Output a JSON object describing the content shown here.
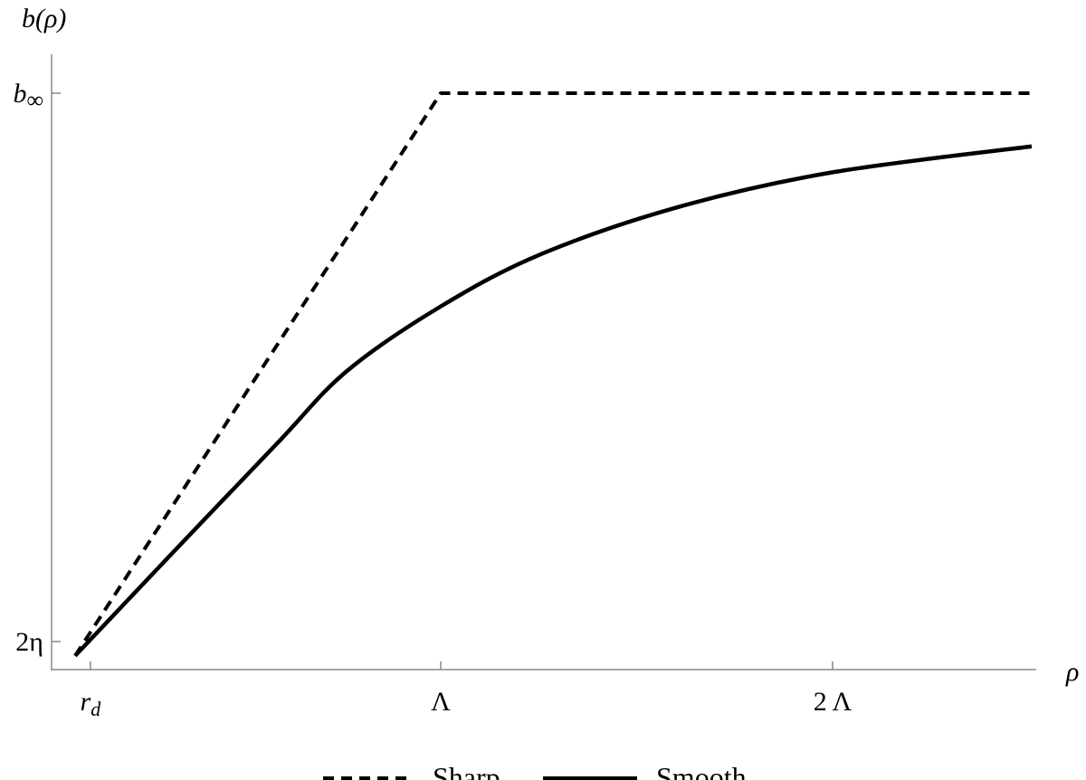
{
  "chart_data": {
    "type": "line",
    "title": "",
    "xlabel": "ρ",
    "ylabel": "b(ρ)",
    "xlim": [
      0,
      2.52
    ],
    "ylim": [
      -0.051,
      1.071
    ],
    "x_unit": "Λ",
    "y_scale_note": "0 = 2η, 1 = b∞",
    "x_ticks": [
      {
        "value": 0.106,
        "label": "r",
        "sub": "d"
      },
      {
        "value": 1,
        "label": "Λ"
      },
      {
        "value": 2,
        "label": "2 Λ"
      }
    ],
    "y_ticks": [
      {
        "value": 0,
        "label": "2η"
      },
      {
        "value": 1,
        "label": "b",
        "sub": "∞"
      }
    ],
    "grid": false,
    "legend_placement": "bottom",
    "series": [
      {
        "name": "Sharp",
        "style": "dashed",
        "color": "#000000",
        "x": [
          0.067,
          1.0,
          2.508
        ],
        "y": [
          -0.026,
          1.0,
          1.0
        ]
      },
      {
        "name": "Smooth",
        "style": "solid",
        "color": "#000000",
        "x": [
          0.067,
          0.316,
          0.582,
          0.76,
          1.002,
          1.261,
          1.614,
          2.002,
          2.508
        ],
        "y": [
          -0.026,
          0.162,
          0.361,
          0.493,
          0.612,
          0.708,
          0.794,
          0.856,
          0.903
        ]
      }
    ]
  }
}
